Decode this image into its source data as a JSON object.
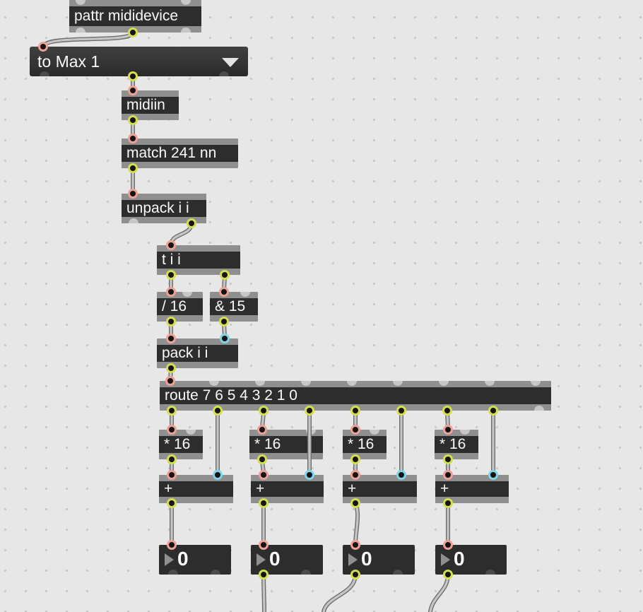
{
  "patcher": {
    "boxes": {
      "pattr": {
        "label": "pattr mididevice"
      },
      "device_menu": {
        "label": "to Max 1",
        "icon": "dropdown-arrow-icon"
      },
      "midiin": {
        "label": "midiin"
      },
      "match": {
        "label": "match 241 nn"
      },
      "unpack": {
        "label": "unpack i i"
      },
      "trigger": {
        "label": "t i i"
      },
      "divide": {
        "label": "/ 16"
      },
      "bitand": {
        "label": "& 15"
      },
      "pack": {
        "label": "pack i i"
      },
      "route": {
        "label": "route 7 6 5 4 3 2 1 0"
      },
      "multiply": {
        "label": "* 16"
      },
      "add": {
        "label": "+"
      },
      "numbers": {
        "values": [
          "0",
          "0",
          "0",
          "0"
        ],
        "icon": "number-drag-triangle-icon"
      }
    },
    "colors": {
      "background": "#e7e7e7",
      "box_body": "#2d2d2d",
      "box_bar": "#8f8f8f",
      "text": "#fafafa",
      "hot_inlet_ring": "#efa096",
      "cold_inlet_ring": "#7fd4e8",
      "outlet_ring": "#d5df4e",
      "patch_cord": "#c6c6c6"
    }
  }
}
